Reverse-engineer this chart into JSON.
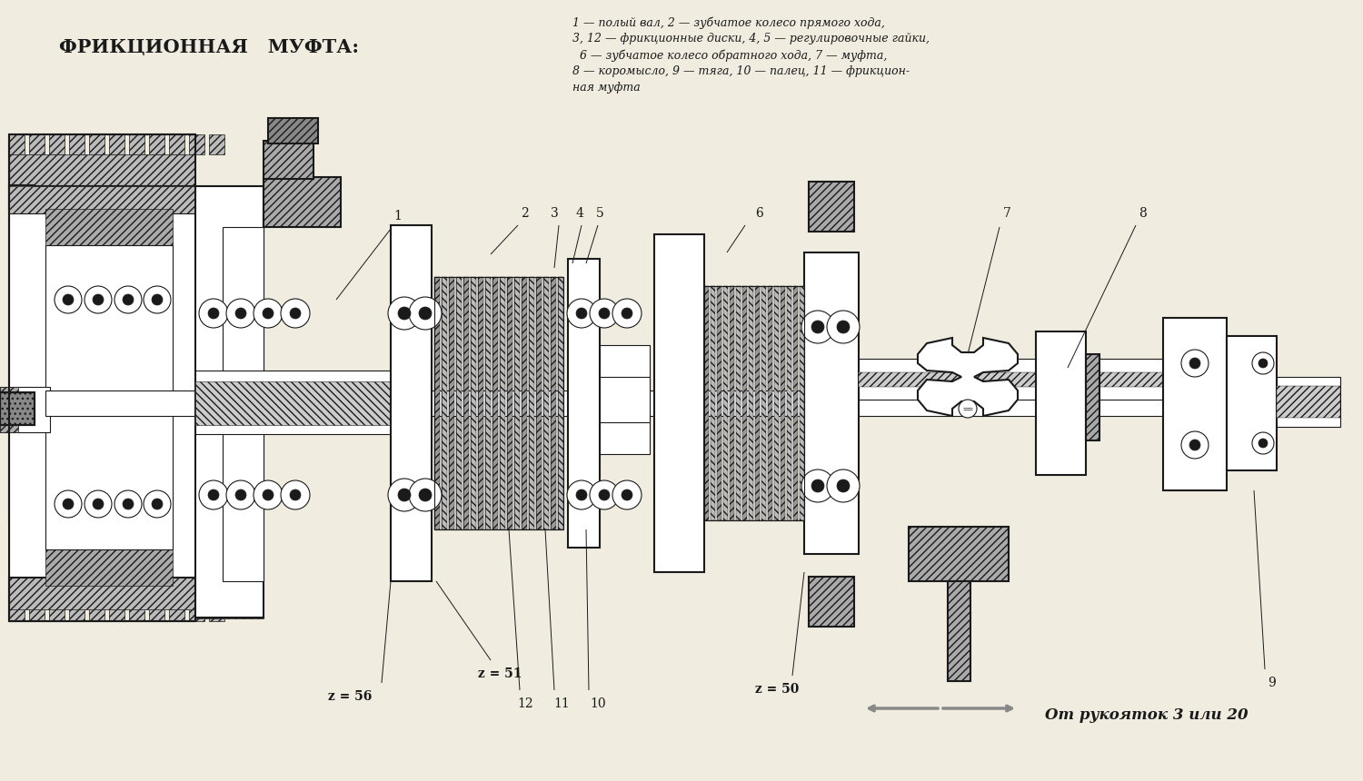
{
  "title": "ФРИКЦИОННАЯ   МУФТА:",
  "legend_line1": "1 — полый вал, 2 — зубчатое колесо прямого хода,",
  "legend_line2": "3, 12 — фрикционные диски, 4, 5 — регулировочные гайки,",
  "legend_line3": "  6 — зубчатое колесо обратного хода, 7 — муфта,",
  "legend_line4": "8 — коромысло, 9 — тяга, 10 — палец, 11 — фрикцион-",
  "legend_line5": "ная муфта",
  "bottom_arrow_text": "От рукояток 3 или 20",
  "bg_color": "#f0ece0",
  "line_color": "#1a1a1a",
  "hatch_color": "#333333"
}
